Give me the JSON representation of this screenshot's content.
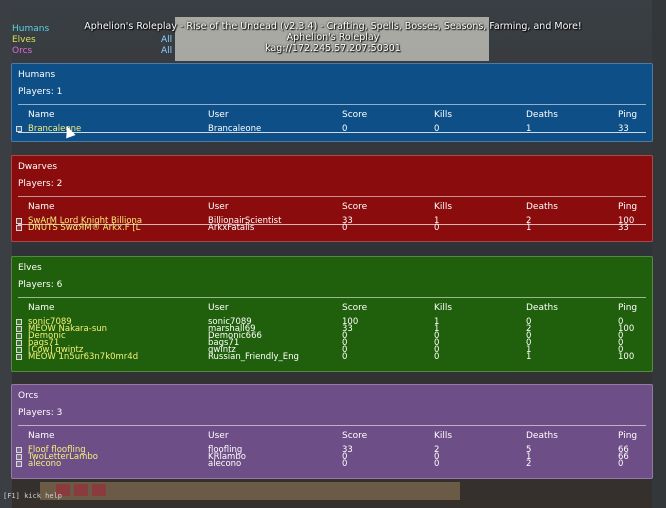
{
  "server": {
    "title": "Aphelion's Roleplay - Rise of the Undead (v2.3.4) - Crafting, Spells, Bosses, Seasons, Farming, and More!",
    "name": "Aphelion's Roleplay",
    "address": "kag://172.245.57.207:50301"
  },
  "team_list": {
    "humans": "Humans",
    "elves": "Elves",
    "orcs": "Orcs",
    "side1": "All",
    "side2": "All"
  },
  "columns": {
    "name": "Name",
    "user": "User",
    "score": "Score",
    "kills": "Kills",
    "deaths": "Deaths",
    "ping": "Ping"
  },
  "teams": [
    {
      "title": "Humans",
      "players_label": "Players: 1",
      "rows": [
        {
          "name": "Brancaleone",
          "user": "Brancaleone",
          "score": "0",
          "kills": "0",
          "deaths": "1",
          "ping": "33"
        }
      ]
    },
    {
      "title": "Dwarves",
      "players_label": "Players: 2",
      "rows": [
        {
          "name": "SwArM Lord Knight Billiona",
          "user": "BillionairScientist",
          "score": "33",
          "kills": "1",
          "deaths": "2",
          "ping": "100"
        },
        {
          "name": "DNUTS SwαЯM® Arkx.F [L",
          "user": "ArkxFatalis",
          "score": "0",
          "kills": "0",
          "deaths": "1",
          "ping": "33"
        }
      ]
    },
    {
      "title": "Elves",
      "players_label": "Players: 6",
      "rows": [
        {
          "name": "sonic7089",
          "user": "sonic7089",
          "score": "100",
          "kills": "1",
          "deaths": "0",
          "ping": "0"
        },
        {
          "name": "MEOW Nakara-sun",
          "user": "marshall69",
          "score": "33",
          "kills": "1",
          "deaths": "2",
          "ping": "100"
        },
        {
          "name": "Demonic",
          "user": "Demonic666",
          "score": "0",
          "kills": "0",
          "deaths": "0",
          "ping": "0"
        },
        {
          "name": "bags71",
          "user": "bags71",
          "score": "0",
          "kills": "0",
          "deaths": "0",
          "ping": "0"
        },
        {
          "name": "[Cow] qwintz",
          "user": "qwintz",
          "score": "0",
          "kills": "0",
          "deaths": "1",
          "ping": "0"
        },
        {
          "name": "MEOW 1n5ur63n7k0mr4d",
          "user": "Russian_Friendly_Eng",
          "score": "0",
          "kills": "0",
          "deaths": "1",
          "ping": "100"
        }
      ]
    },
    {
      "title": "Orcs",
      "players_label": "Players: 3",
      "rows": [
        {
          "name": "Floof floofling",
          "user": "floofling",
          "score": "33",
          "kills": "2",
          "deaths": "5",
          "ping": "66"
        },
        {
          "name": "TwoLetterLambo",
          "user": "KRlambo",
          "score": "0",
          "kills": "0",
          "deaths": "1",
          "ping": "66"
        },
        {
          "name": "alecono",
          "user": "alecono",
          "score": "0",
          "kills": "0",
          "deaths": "2",
          "ping": "0"
        }
      ]
    }
  ],
  "console_text": "[F1] kick help"
}
